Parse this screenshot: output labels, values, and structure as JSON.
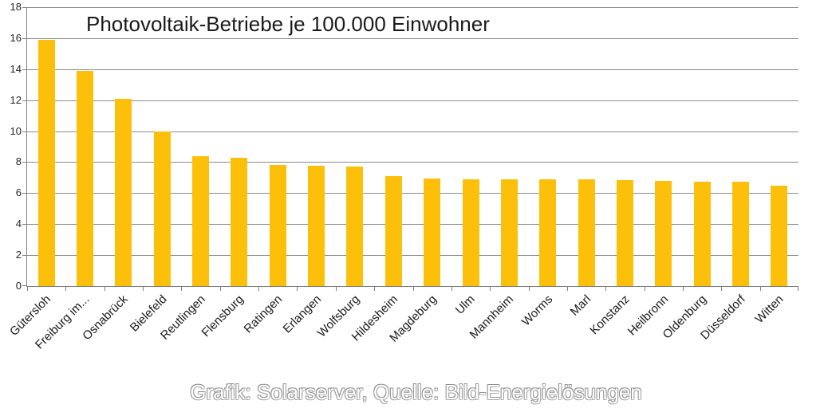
{
  "chart_data": {
    "type": "bar",
    "title": "Photovoltaik-Betriebe je 100.000 Einwohner",
    "caption": "Grafik: Solarserver, Quelle: Bild-Energielösungen",
    "categories": [
      "Gütersloh",
      "Freiburg im...",
      "Osnabrück",
      "Bielefeld",
      "Reutlingen",
      "Flensburg",
      "Ratingen",
      "Erlangen",
      "Wolfsburg",
      "Hildesheim",
      "Magdeburg",
      "Ulm",
      "Mannheim",
      "Worms",
      "Marl",
      "Konstanz",
      "Heilbronn",
      "Oldenburg",
      "Düsseldorf",
      "Witten"
    ],
    "values": [
      15.9,
      13.9,
      12.1,
      10,
      8.4,
      8.3,
      7.8,
      7.75,
      7.7,
      7.1,
      6.95,
      6.9,
      6.9,
      6.9,
      6.9,
      6.85,
      6.8,
      6.75,
      6.75,
      6.5
    ],
    "xlabel": "",
    "ylabel": "",
    "ylim": [
      0,
      18
    ],
    "ytick_step": 2,
    "ytick_labels": [
      "0",
      "2",
      "4",
      "6",
      "8",
      "10",
      "12",
      "14",
      "16",
      "18"
    ],
    "grid": true,
    "legend": false,
    "colors": {
      "bar": "#FDC00A",
      "gridline": "#8a8a8a",
      "axis": "#808080",
      "title_text": "#1a1a1a",
      "tick_text": "#262626",
      "caption_fill": "#ffffff",
      "caption_outline": "#999999",
      "background": "#ffffff"
    }
  }
}
